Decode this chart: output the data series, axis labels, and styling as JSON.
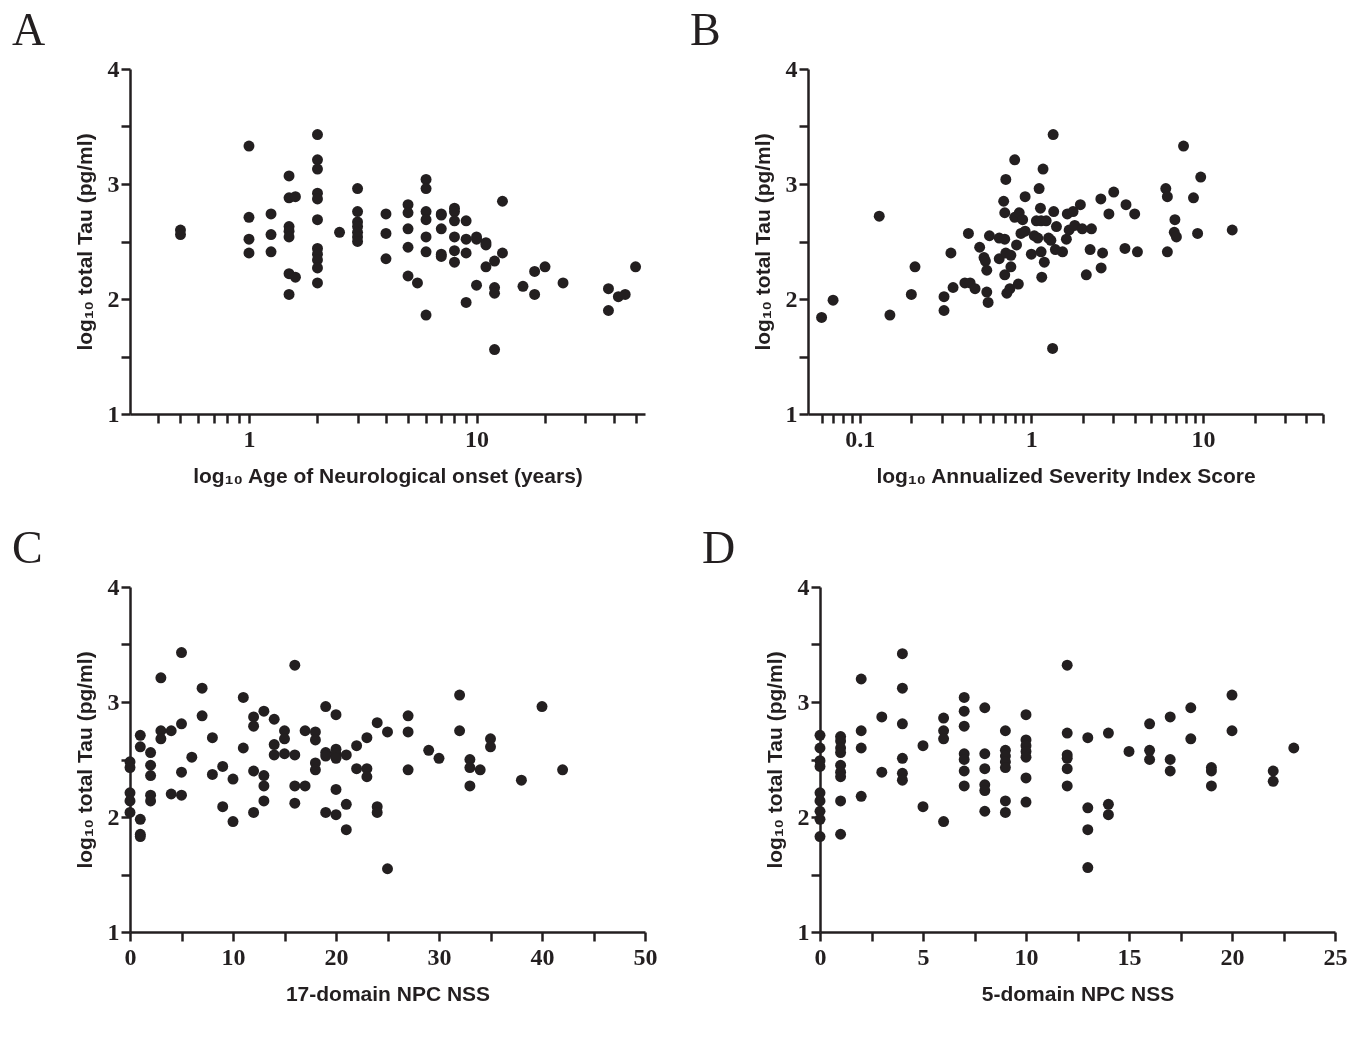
{
  "chart_data": [
    {
      "type": "scatter",
      "title": "A",
      "xlabel": "log₁₀ Age of Neurological onset (years)",
      "ylabel": "log₁₀ total Tau (pg/ml)",
      "log": "x",
      "marker": "circle",
      "xlim": [
        0.3,
        55
      ],
      "ylim": [
        1,
        4
      ],
      "xticks": [
        {
          "value": 0.4,
          "label": null
        },
        {
          "value": 0.5,
          "label": null
        },
        {
          "value": 0.6,
          "label": null
        },
        {
          "value": 0.7,
          "label": null
        },
        {
          "value": 0.8,
          "label": null
        },
        {
          "value": 0.9,
          "label": null
        },
        1,
        {
          "value": 2,
          "label": null
        },
        {
          "value": 3,
          "label": null
        },
        {
          "value": 4,
          "label": null
        },
        {
          "value": 5,
          "label": null
        },
        {
          "value": 6,
          "label": null
        },
        {
          "value": 7,
          "label": null
        },
        {
          "value": 8,
          "label": null
        },
        {
          "value": 9,
          "label": null
        },
        10,
        {
          "value": 20,
          "label": null
        },
        {
          "value": 30,
          "label": null
        },
        {
          "value": 40,
          "label": null
        },
        {
          "value": 50,
          "label": null
        }
      ],
      "yticks": [
        1,
        {
          "value": 1.5,
          "label": null
        },
        2,
        {
          "value": 2.5,
          "label": null
        },
        3,
        {
          "value": 3.5,
          "label": null
        },
        4
      ],
      "series": [
        {
          "color": "#231f20",
          "x": [
            0.5,
            0.5,
            1,
            1,
            1,
            1,
            1.25,
            1.25,
            1.25,
            1.5,
            1.5,
            1.5,
            1.5,
            1.5,
            1.5,
            1.5,
            1.6,
            1.6,
            2,
            2,
            2,
            2,
            2,
            2,
            2,
            2,
            2,
            2,
            2,
            2.5,
            3,
            3,
            3,
            3,
            3,
            3,
            3,
            4,
            4,
            4,
            5,
            5,
            5,
            5,
            5,
            5.5,
            6,
            6,
            6,
            6,
            6,
            6,
            6,
            7,
            7,
            7,
            7,
            7,
            8,
            8,
            8,
            8,
            8,
            8,
            9,
            9,
            9,
            9,
            10,
            10,
            10,
            11,
            11,
            11,
            12,
            12,
            12,
            12,
            13,
            13,
            16,
            18,
            18,
            20,
            24,
            38,
            38,
            42,
            45,
            50
          ],
          "values": [
            2.6,
            2.56,
            3.33,
            2.71,
            2.52,
            2.4,
            2.74,
            2.56,
            2.41,
            3.07,
            2.88,
            2.63,
            2.59,
            2.54,
            2.22,
            2.04,
            2.89,
            2.19,
            3.43,
            3.21,
            3.13,
            2.92,
            2.87,
            2.69,
            2.44,
            2.39,
            2.34,
            2.27,
            2.14,
            2.58,
            2.96,
            2.76,
            2.67,
            2.63,
            2.58,
            2.54,
            2.5,
            2.74,
            2.57,
            2.35,
            2.82,
            2.75,
            2.61,
            2.45,
            2.2,
            2.14,
            3.04,
            2.96,
            2.76,
            2.69,
            2.54,
            2.41,
            1.86,
            2.74,
            2.73,
            2.61,
            2.39,
            2.37,
            2.79,
            2.76,
            2.68,
            2.54,
            2.42,
            2.32,
            2.68,
            2.52,
            2.4,
            1.97,
            2.54,
            2.52,
            2.12,
            2.49,
            2.47,
            2.28,
            2.33,
            2.1,
            2.05,
            1.56,
            2.85,
            2.4,
            2.11,
            2.24,
            2.04,
            2.28,
            2.14,
            2.09,
            1.9,
            2.02,
            2.04,
            2.28
          ]
        }
      ]
    },
    {
      "type": "scatter",
      "title": "B",
      "xlabel": "log₁₀ Annualized Severity Index Score",
      "ylabel": "log₁₀ total Tau (pg/ml)",
      "log": "x",
      "marker": "circle",
      "xlim": [
        0.05,
        50
      ],
      "ylim": [
        1,
        4
      ],
      "xticks": [
        {
          "value": 0.06,
          "label": null
        },
        {
          "value": 0.07,
          "label": null
        },
        {
          "value": 0.08,
          "label": null
        },
        {
          "value": 0.09,
          "label": null
        },
        0.1,
        {
          "value": 0.2,
          "label": null
        },
        {
          "value": 0.3,
          "label": null
        },
        {
          "value": 0.4,
          "label": null
        },
        {
          "value": 0.5,
          "label": null
        },
        {
          "value": 0.6,
          "label": null
        },
        {
          "value": 0.7,
          "label": null
        },
        {
          "value": 0.8,
          "label": null
        },
        {
          "value": 0.9,
          "label": null
        },
        1,
        {
          "value": 2,
          "label": null
        },
        {
          "value": 3,
          "label": null
        },
        {
          "value": 4,
          "label": null
        },
        {
          "value": 5,
          "label": null
        },
        {
          "value": 6,
          "label": null
        },
        {
          "value": 7,
          "label": null
        },
        {
          "value": 8,
          "label": null
        },
        {
          "value": 9,
          "label": null
        },
        10,
        {
          "value": 20,
          "label": null
        },
        {
          "value": 30,
          "label": null
        },
        {
          "value": 40,
          "label": null
        },
        {
          "value": 50,
          "label": null
        }
      ],
      "yticks": [
        1,
        {
          "value": 1.5,
          "label": null
        },
        2,
        {
          "value": 2.5,
          "label": null
        },
        3,
        {
          "value": 3.5,
          "label": null
        },
        4
      ],
      "series": [
        {
          "color": "#231f20",
          "x": [
            0.06,
            0.07,
            0.13,
            0.15,
            0.2,
            0.21,
            0.31,
            0.31,
            0.34,
            0.35,
            0.41,
            0.43,
            0.44,
            0.47,
            0.5,
            0.53,
            0.54,
            0.55,
            0.55,
            0.56,
            0.57,
            0.65,
            0.65,
            0.69,
            0.7,
            0.7,
            0.71,
            0.7,
            0.71,
            0.72,
            0.75,
            0.76,
            0.76,
            0.8,
            0.8,
            0.82,
            0.84,
            0.85,
            0.87,
            0.89,
            0.92,
            0.92,
            1.0,
            1.04,
            1.07,
            1.09,
            1.11,
            1.13,
            1.14,
            1.14,
            1.15,
            1.17,
            1.19,
            1.22,
            1.26,
            1.3,
            1.34,
            1.35,
            1.33,
            1.38,
            1.4,
            1.52,
            1.6,
            1.62,
            1.66,
            1.75,
            1.79,
            1.93,
            1.98,
            2.09,
            2.2,
            2.24,
            2.54,
            2.55,
            2.6,
            2.83,
            3.02,
            3.51,
            3.56,
            4.0,
            4.15,
            6.07,
            6.2,
            6.2,
            6.86,
            6.8,
            7.0,
            7.7,
            8.8,
            9.3,
            9.7,
            14.8
          ],
          "values": [
            1.84,
            1.99,
            2.72,
            1.86,
            2.04,
            2.28,
            2.02,
            1.9,
            2.4,
            2.1,
            2.14,
            2.57,
            2.14,
            2.09,
            2.45,
            2.36,
            2.33,
            2.25,
            2.06,
            1.97,
            2.55,
            2.53,
            2.35,
            2.85,
            2.75,
            2.21,
            3.04,
            2.52,
            2.4,
            2.05,
            2.09,
            2.38,
            2.28,
            3.21,
            2.71,
            2.47,
            2.13,
            2.75,
            2.57,
            2.69,
            2.89,
            2.59,
            2.39,
            2.55,
            2.68,
            2.53,
            2.96,
            2.79,
            2.68,
            2.41,
            2.19,
            3.13,
            2.32,
            2.68,
            2.53,
            2.51,
            3.43,
            2.76,
            1.57,
            2.43,
            2.63,
            2.41,
            2.52,
            2.74,
            2.6,
            2.76,
            2.64,
            2.82,
            2.61,
            2.21,
            2.43,
            2.61,
            2.87,
            2.27,
            2.4,
            2.74,
            2.93,
            2.44,
            2.82,
            2.74,
            2.41,
            2.96,
            2.89,
            2.41,
            2.69,
            2.58,
            2.54,
            3.33,
            2.88,
            2.57,
            3.06,
            2.6
          ]
        }
      ]
    },
    {
      "type": "scatter",
      "title": "C",
      "xlabel": "17-domain NPC NSS",
      "ylabel": "log₁₀ total Tau (pg/ml)",
      "marker": "circle",
      "xlim": [
        0,
        50
      ],
      "ylim": [
        1,
        4
      ],
      "xticks": [
        0,
        {
          "value": 5,
          "label": null
        },
        10,
        {
          "value": 15,
          "label": null
        },
        20,
        {
          "value": 25,
          "label": null
        },
        30,
        {
          "value": 35,
          "label": null
        },
        40,
        {
          "value": 45,
          "label": null
        },
        50
      ],
      "yticks": [
        1,
        {
          "value": 1.5,
          "label": null
        },
        2,
        {
          "value": 2.5,
          "label": null
        },
        3,
        {
          "value": 3.5,
          "label": null
        },
        4
      ],
      "series": [
        {
          "color": "#231f20",
          "x": [
            0,
            0,
            0,
            0,
            0,
            1,
            1,
            1,
            1,
            1,
            2,
            2,
            2,
            2,
            2,
            3,
            3,
            3,
            4,
            4,
            5,
            5,
            5,
            5,
            6,
            7,
            7,
            8,
            8,
            9,
            9,
            10,
            10,
            11,
            11,
            12,
            12,
            12,
            12,
            13,
            13,
            13,
            13,
            14,
            14,
            14,
            15,
            15,
            15,
            16,
            16,
            16,
            16,
            17,
            17,
            18,
            18,
            18,
            18,
            19,
            19,
            19,
            19,
            20,
            20,
            20,
            20,
            20,
            20,
            21,
            21,
            21,
            22,
            22,
            23,
            23,
            23,
            24,
            24,
            24,
            25,
            25,
            27,
            27,
            27,
            29,
            30,
            32,
            32,
            33,
            33,
            33,
            34,
            35,
            35,
            38,
            40,
            42
          ],
          "values": [
            2.48,
            2.43,
            2.21,
            2.14,
            2.04,
            2.71,
            2.61,
            1.98,
            1.85,
            1.83,
            2.56,
            2.45,
            2.36,
            2.19,
            2.14,
            3.21,
            2.75,
            2.68,
            2.75,
            2.2,
            3.43,
            2.81,
            2.39,
            2.19,
            2.52,
            3.12,
            2.88,
            2.69,
            2.37,
            2.44,
            2.09,
            2.33,
            1.96,
            3.04,
            2.6,
            2.87,
            2.79,
            2.4,
            2.04,
            2.92,
            2.36,
            2.27,
            2.14,
            2.85,
            2.63,
            2.54,
            2.75,
            2.68,
            2.55,
            3.32,
            2.54,
            2.27,
            2.12,
            2.75,
            2.27,
            2.74,
            2.67,
            2.47,
            2.41,
            2.96,
            2.56,
            2.53,
            2.04,
            2.89,
            2.59,
            2.55,
            2.51,
            2.24,
            2.02,
            2.54,
            2.11,
            1.89,
            2.62,
            2.42,
            2.69,
            2.42,
            2.35,
            2.82,
            2.09,
            2.04,
            2.74,
            1.55,
            2.88,
            2.74,
            2.41,
            2.58,
            2.51,
            3.06,
            2.75,
            2.5,
            2.43,
            2.27,
            2.41,
            2.68,
            2.61,
            2.32,
            2.96,
            2.41
          ]
        }
      ]
    },
    {
      "type": "scatter",
      "title": "D",
      "xlabel": "5-domain NPC NSS",
      "ylabel": "log₁₀ total Tau (pg/ml)",
      "marker": "circle",
      "xlim": [
        0,
        25
      ],
      "ylim": [
        1,
        4
      ],
      "xticks": [
        0,
        {
          "value": 2.5,
          "label": null
        },
        5,
        {
          "value": 7.5,
          "label": null
        },
        10,
        {
          "value": 12.5,
          "label": null
        },
        15,
        {
          "value": 17.5,
          "label": null
        },
        20,
        {
          "value": 22.5,
          "label": null
        },
        25
      ],
      "yticks": [
        1,
        {
          "value": 1.5,
          "label": null
        },
        2,
        {
          "value": 2.5,
          "label": null
        },
        3,
        {
          "value": 3.5,
          "label": null
        },
        4
      ],
      "series": [
        {
          "color": "#231f20",
          "x": [
            0,
            0,
            0,
            0,
            0,
            0,
            0,
            0,
            0,
            1,
            1,
            1,
            1,
            1,
            1,
            1,
            1,
            1,
            2,
            2,
            2,
            2,
            3,
            3,
            4,
            4,
            4,
            4,
            4,
            4,
            5,
            5,
            6,
            6,
            6,
            6,
            7,
            7,
            7,
            7,
            7,
            7,
            7,
            8,
            8,
            8,
            8,
            8,
            8,
            9,
            9,
            9,
            9,
            9,
            9,
            9,
            10,
            10,
            10,
            10,
            10,
            10,
            10,
            12,
            12,
            12,
            12,
            12,
            12,
            13,
            13,
            13,
            13,
            14,
            14,
            14,
            15,
            16,
            16,
            16,
            17,
            17,
            17,
            18,
            18,
            19,
            19,
            19,
            20,
            20,
            22,
            22,
            23
          ],
          "values": [
            2.71,
            2.6,
            2.49,
            2.44,
            2.21,
            2.14,
            2.05,
            1.98,
            1.83,
            2.7,
            2.66,
            2.6,
            2.56,
            2.45,
            2.39,
            2.35,
            2.14,
            1.85,
            3.2,
            2.75,
            2.6,
            2.18,
            2.87,
            2.39,
            3.42,
            3.12,
            2.81,
            2.51,
            2.38,
            2.32,
            2.62,
            2.09,
            2.86,
            2.75,
            2.68,
            1.96,
            3.04,
            2.92,
            2.79,
            2.55,
            2.5,
            2.4,
            2.27,
            2.95,
            2.55,
            2.42,
            2.28,
            2.23,
            2.05,
            2.75,
            2.58,
            2.53,
            2.48,
            2.43,
            2.14,
            2.04,
            2.89,
            2.67,
            2.62,
            2.57,
            2.52,
            2.34,
            2.13,
            3.32,
            2.73,
            2.54,
            2.51,
            2.42,
            2.27,
            2.69,
            2.08,
            1.89,
            1.56,
            2.73,
            2.11,
            2.02,
            2.57,
            2.81,
            2.58,
            2.5,
            2.87,
            2.5,
            2.4,
            2.95,
            2.68,
            2.43,
            2.27,
            2.4,
            3.06,
            2.75,
            2.4,
            2.31,
            2.6
          ]
        }
      ]
    }
  ]
}
